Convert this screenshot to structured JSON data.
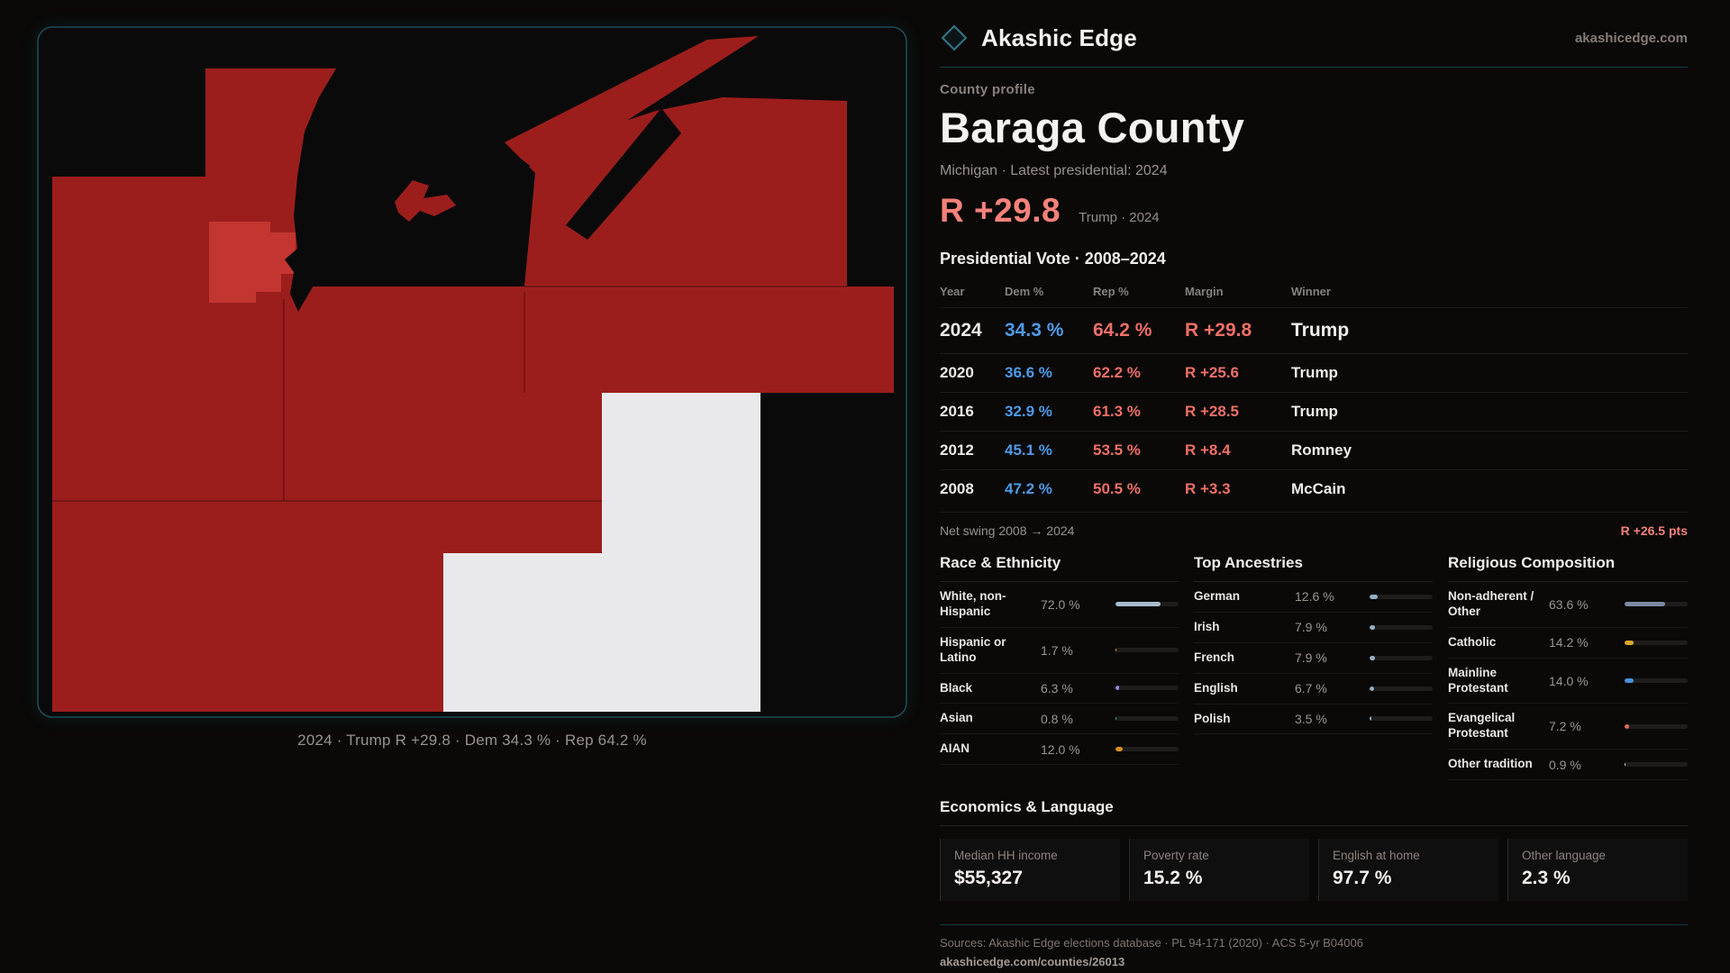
{
  "brand": {
    "name": "Akashic Edge",
    "domain": "akashicedge.com"
  },
  "profile": {
    "kicker": "County profile",
    "title": "Baraga County",
    "subtitle": "Michigan · Latest presidential: 2024",
    "margin_value": "R +29.8",
    "margin_context": "Trump · 2024"
  },
  "election": {
    "title": "Presidential Vote · 2008–2024",
    "columns": [
      "Year",
      "Dem %",
      "Rep %",
      "Margin",
      "Winner"
    ],
    "rows": [
      {
        "year": "2024",
        "dem": "34.3 %",
        "rep": "64.2 %",
        "margin": "R +29.8",
        "winner": "Trump",
        "highlight": true
      },
      {
        "year": "2020",
        "dem": "36.6 %",
        "rep": "62.2 %",
        "margin": "R +25.6",
        "winner": "Trump",
        "highlight": false
      },
      {
        "year": "2016",
        "dem": "32.9 %",
        "rep": "61.3 %",
        "margin": "R +28.5",
        "winner": "Trump",
        "highlight": false
      },
      {
        "year": "2012",
        "dem": "45.1 %",
        "rep": "53.5 %",
        "margin": "R +8.4",
        "winner": "Romney",
        "highlight": false
      },
      {
        "year": "2008",
        "dem": "47.2 %",
        "rep": "50.5 %",
        "margin": "R +3.3",
        "winner": "McCain",
        "highlight": false
      }
    ],
    "net_swing_label": "Net swing 2008 → 2024",
    "net_swing_value": "R +26.5 pts"
  },
  "demographics": {
    "race": {
      "title": "Race & Ethnicity",
      "items": [
        {
          "label": "White, non-Hispanic",
          "value": "72.0 %",
          "pct": 72.0,
          "color": "#a9bccd"
        },
        {
          "label": "Hispanic or Latino",
          "value": "1.7 %",
          "pct": 1.7,
          "color": "#e2a43b"
        },
        {
          "label": "Black",
          "value": "6.3 %",
          "pct": 6.3,
          "color": "#9d82e8"
        },
        {
          "label": "Asian",
          "value": "0.8 %",
          "pct": 0.8,
          "color": "#35c0a2"
        },
        {
          "label": "AIAN",
          "value": "12.0 %",
          "pct": 12.0,
          "color": "#d88f1e"
        }
      ]
    },
    "ancestries": {
      "title": "Top Ancestries",
      "items": [
        {
          "label": "German",
          "value": "12.6 %",
          "pct": 12.6,
          "color": "#94aec6"
        },
        {
          "label": "Irish",
          "value": "7.9 %",
          "pct": 7.9,
          "color": "#94aec6"
        },
        {
          "label": "French",
          "value": "7.9 %",
          "pct": 7.9,
          "color": "#94aec6"
        },
        {
          "label": "English",
          "value": "6.7 %",
          "pct": 6.7,
          "color": "#94aec6"
        },
        {
          "label": "Polish",
          "value": "3.5 %",
          "pct": 3.5,
          "color": "#94aec6"
        }
      ]
    },
    "religion": {
      "title": "Religious Composition",
      "items": [
        {
          "label": "Non-adherent / Other",
          "value": "63.6 %",
          "pct": 63.6,
          "color": "#7b8aa3"
        },
        {
          "label": "Catholic",
          "value": "14.2 %",
          "pct": 14.2,
          "color": "#d9a826"
        },
        {
          "label": "Mainline Protestant",
          "value": "14.0 %",
          "pct": 14.0,
          "color": "#4a90d9"
        },
        {
          "label": "Evangelical Protestant",
          "value": "7.2 %",
          "pct": 7.2,
          "color": "#e0695f"
        },
        {
          "label": "Other tradition",
          "value": "0.9 %",
          "pct": 0.9,
          "color": "#d8d8d8"
        }
      ]
    }
  },
  "economics": {
    "title": "Economics & Language",
    "cards": [
      {
        "label": "Median HH income",
        "value": "$55,327"
      },
      {
        "label": "Poverty rate",
        "value": "15.2 %"
      },
      {
        "label": "English at home",
        "value": "97.7 %"
      },
      {
        "label": "Other language",
        "value": "2.3 %"
      }
    ]
  },
  "footer": {
    "sources": "Sources: Akashic Edge elections database · PL 94-171 (2020) · ACS 5-yr B04006",
    "permalink": "akashicedge.com/counties/26013"
  },
  "map": {
    "caption": "2024 · Trump R +29.8 · Dem 34.3 % · Rep 64.2 %",
    "colors": {
      "dark_red": "#9b1e1c",
      "bright_red": "#c23530",
      "white": "#e9e9ec",
      "water": "#0a0a0b",
      "border": "#1d4f59"
    }
  },
  "colors": {
    "dem_blue": "#4f9ae8",
    "rep_red": "#ee6f66",
    "accent_teal": "#1d4f59",
    "text": "#f2efec",
    "muted": "#948b86"
  }
}
